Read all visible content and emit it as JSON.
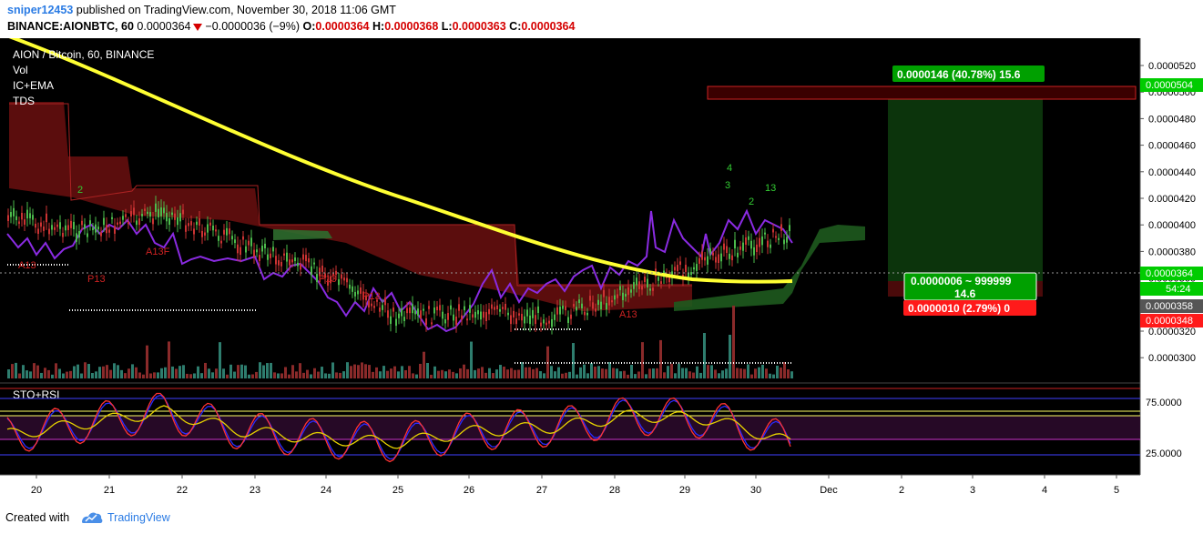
{
  "header": {
    "author": "sniper12453",
    "published_text": " published on TradingView.com, November 30, 2018 11:06 GMT",
    "symbol": "BINANCE:AIONBTC, 60",
    "last": "0.0000364",
    "change": "−0.0000036 (−9%)",
    "o_label": "O:",
    "o_value": "0.0000364",
    "h_label": "H:",
    "h_value": "0.0000368",
    "l_label": "L:",
    "l_value": "0.0000363",
    "c_label": "C:",
    "c_value": "0.0000364"
  },
  "legend": {
    "title": "AION / Bitcoin, 60, BINANCE",
    "items": [
      "Vol",
      "IC+EMA",
      "TDS"
    ]
  },
  "lower_pane": {
    "title": "STO+RSI"
  },
  "colors": {
    "background": "#000000",
    "ema": "#ffff33",
    "cloud_red": "#8b1a1a",
    "cloud_green": "#1e6b1e",
    "purple_line": "#8a2be2",
    "price_tag": "#00cc00",
    "loss_tag": "#ff0000",
    "target_zone": "#b22222",
    "grid": "#111111"
  },
  "price_axis": {
    "ticks": [
      "0.0000520",
      "0.0000500",
      "0.0000480",
      "0.0000460",
      "0.0000440",
      "0.0000420",
      "0.0000400",
      "0.0000380",
      "0.0000360",
      "0.0000340",
      "0.0000320",
      "0.0000300"
    ],
    "label_504": "0.0000504",
    "label_364": "0.0000364",
    "label_countdown": "54:24",
    "label_358": "0.0000358",
    "label_348": "0.0000348"
  },
  "osc_axis": {
    "ticks": [
      "75.0000",
      "25.0000"
    ]
  },
  "time_axis": {
    "ticks": [
      "20",
      "21",
      "22",
      "23",
      "24",
      "25",
      "26",
      "27",
      "28",
      "29",
      "30",
      "Dec",
      "2",
      "3",
      "4",
      "5"
    ]
  },
  "annotations": {
    "profit_box": "0.0000146 (40.78%) 15.6",
    "ratio_box_line1": "0.0000006 ~ 999999",
    "ratio_box_line2": "14.6",
    "loss_box": "0.0000010 (2.79%) 0",
    "td_labels": [
      "A13",
      "P13",
      "A13F",
      "P13",
      "A13",
      "P13",
      "4",
      "3",
      "2",
      "13",
      "2"
    ]
  },
  "chart_data": {
    "type": "line",
    "title": "AION / Bitcoin, 60, BINANCE",
    "x_categories": [
      "20",
      "21",
      "22",
      "23",
      "24",
      "25",
      "26",
      "27",
      "28",
      "29",
      "30"
    ],
    "series": [
      {
        "name": "AIONBTC",
        "values": [
          4.05e-05,
          3.95e-05,
          4.1e-05,
          3.85e-05,
          3.65e-05,
          3.3e-05,
          3.35e-05,
          3.3e-05,
          3.52e-05,
          3.75e-05,
          3.95e-05
        ]
      },
      {
        "name": "IC+EMA",
        "values": [
          5.1e-05,
          4.8e-05,
          4.52e-05,
          4.28e-05,
          4.08e-05,
          3.9e-05,
          3.76e-05,
          3.66e-05,
          3.6e-05,
          3.58e-05,
          3.58e-05
        ]
      }
    ],
    "ylim": [
      2.9e-05,
      5.3e-05
    ],
    "position_tool": {
      "entry": 3.58e-05,
      "target": 5.04e-05,
      "stop": 3.48e-05,
      "profit": "0.0000146 (40.78%) 15.6",
      "loss": "0.0000010 (2.79%) 0"
    },
    "oscillator": {
      "name": "STO+RSI",
      "levels": [
        25,
        75
      ],
      "values": [
        40,
        55,
        70,
        45,
        35,
        30,
        45,
        50,
        65,
        60,
        30
      ]
    }
  }
}
